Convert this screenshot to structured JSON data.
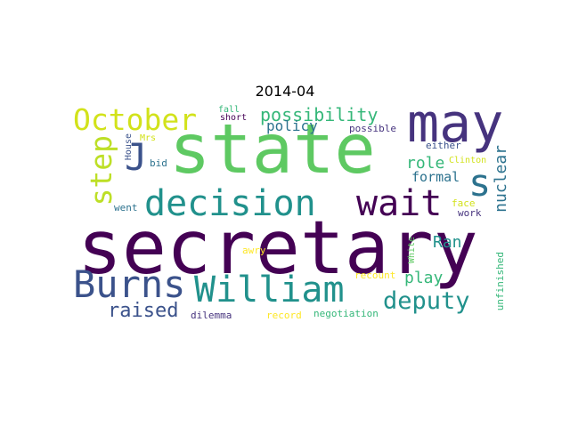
{
  "title": "2014-04",
  "colors": {
    "dark_purple": "#440154",
    "indigo": "#3b528b",
    "slate": "#46337e",
    "teal": "#21918c",
    "teal_blue": "#2c728e",
    "green": "#5ec962",
    "sea_green": "#35b779",
    "yellow_green": "#bddf26",
    "yellow": "#fde725"
  },
  "words": [
    {
      "text": "secretary",
      "orientation": "horizontal",
      "color": "#440154"
    },
    {
      "text": "state",
      "orientation": "horizontal",
      "color": "#5ec962"
    },
    {
      "text": "may",
      "orientation": "horizontal",
      "color": "#46337e"
    },
    {
      "text": "October",
      "orientation": "horizontal",
      "color": "#d2e21b"
    },
    {
      "text": "William",
      "orientation": "horizontal",
      "color": "#21918c"
    },
    {
      "text": "decision",
      "orientation": "horizontal",
      "color": "#21918c"
    },
    {
      "text": "wait",
      "orientation": "horizontal",
      "color": "#440154"
    },
    {
      "text": "Burns",
      "orientation": "horizontal",
      "color": "#3b528b"
    },
    {
      "text": "step",
      "orientation": "vertical",
      "color": "#bddf26"
    },
    {
      "text": "J",
      "orientation": "horizontal",
      "color": "#3b528b"
    },
    {
      "text": "s",
      "orientation": "horizontal",
      "color": "#2c728e"
    },
    {
      "text": "deputy",
      "orientation": "horizontal",
      "color": "#21918c"
    },
    {
      "text": "raised",
      "orientation": "horizontal",
      "color": "#3b528b"
    },
    {
      "text": "possibility",
      "orientation": "horizontal",
      "color": "#35b779"
    },
    {
      "text": "nuclear",
      "orientation": "vertical",
      "color": "#2c728e"
    },
    {
      "text": "role",
      "orientation": "horizontal",
      "color": "#35b779"
    },
    {
      "text": "Ran",
      "orientation": "horizontal",
      "color": "#21918c"
    },
    {
      "text": "play",
      "orientation": "horizontal",
      "color": "#35b779"
    },
    {
      "text": "policy",
      "orientation": "horizontal",
      "color": "#2c728e"
    },
    {
      "text": "formal",
      "orientation": "horizontal",
      "color": "#2c728e"
    },
    {
      "text": "short",
      "orientation": "horizontal",
      "color": "#440154"
    },
    {
      "text": "fall",
      "orientation": "horizontal",
      "color": "#35b779"
    },
    {
      "text": "Mrs",
      "orientation": "horizontal",
      "color": "#d2e21b"
    },
    {
      "text": "House",
      "orientation": "vertical",
      "color": "#3b528b"
    },
    {
      "text": "bid",
      "orientation": "horizontal",
      "color": "#2c728e"
    },
    {
      "text": "possible",
      "orientation": "horizontal",
      "color": "#46337e"
    },
    {
      "text": "either",
      "orientation": "horizontal",
      "color": "#3b528b"
    },
    {
      "text": "Clinton",
      "orientation": "horizontal",
      "color": "#d2e21b"
    },
    {
      "text": "went",
      "orientation": "horizontal",
      "color": "#2c728e"
    },
    {
      "text": "face",
      "orientation": "horizontal",
      "color": "#d2e21b"
    },
    {
      "text": "work",
      "orientation": "horizontal",
      "color": "#46337e"
    },
    {
      "text": "awry",
      "orientation": "horizontal",
      "color": "#fde725"
    },
    {
      "text": "White",
      "orientation": "vertical",
      "color": "#5ec962"
    },
    {
      "text": "recount",
      "orientation": "horizontal",
      "color": "#fde725"
    },
    {
      "text": "unfinished",
      "orientation": "vertical",
      "color": "#35b779"
    },
    {
      "text": "dilemma",
      "orientation": "horizontal",
      "color": "#46337e"
    },
    {
      "text": "record",
      "orientation": "horizontal",
      "color": "#fde725"
    },
    {
      "text": "negotiation",
      "orientation": "horizontal",
      "color": "#35b779"
    }
  ]
}
